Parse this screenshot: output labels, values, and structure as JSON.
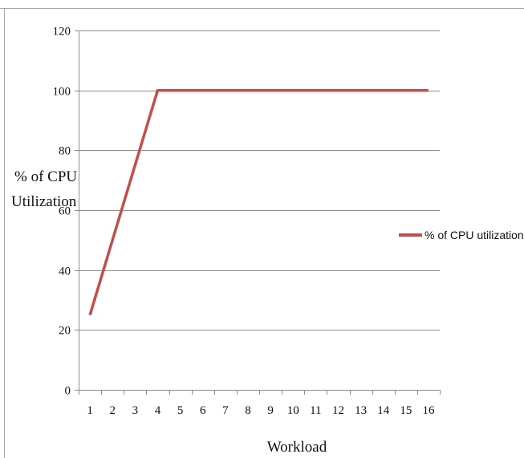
{
  "chart_data": {
    "type": "line",
    "title": "",
    "xlabel": "Workload",
    "ylabel_lines": [
      "% of CPU",
      "Utilization"
    ],
    "categories": [
      "1",
      "2",
      "3",
      "4",
      "5",
      "6",
      "7",
      "8",
      "9",
      "10",
      "11",
      "12",
      "13",
      "14",
      "15",
      "16"
    ],
    "yticks": [
      "0",
      "20",
      "40",
      "60",
      "80",
      "100",
      "120"
    ],
    "ylim": [
      0,
      120
    ],
    "grid": "horizontal",
    "legend_position": "right",
    "series": [
      {
        "name": "% of CPU utilization",
        "color": "#C0504D",
        "values": [
          25,
          50,
          75,
          100,
          100,
          100,
          100,
          100,
          100,
          100,
          100,
          100,
          100,
          100,
          100,
          100
        ]
      }
    ]
  }
}
